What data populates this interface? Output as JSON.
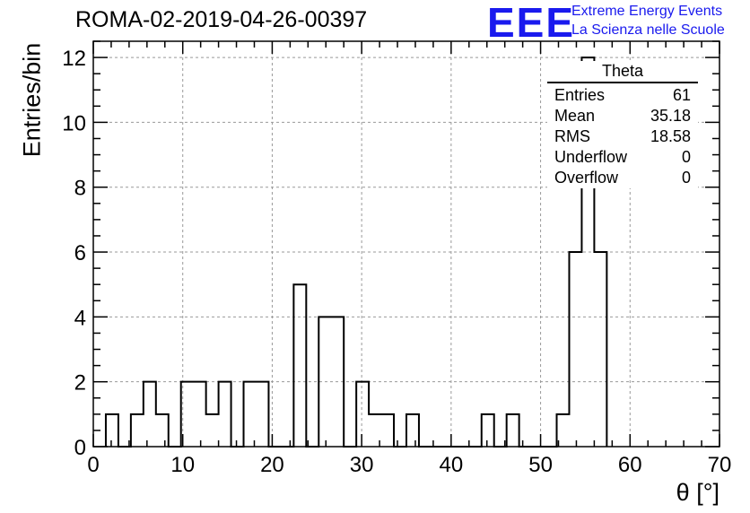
{
  "header": {
    "title": "ROMA-02-2019-04-26-00397",
    "logo_text": "EEE",
    "logo_line1": "Extreme Energy Events",
    "logo_line2": "La Scienza nelle Scuole",
    "logo_color": "#1a1aee"
  },
  "stats_box": {
    "name": "Theta",
    "rows": [
      {
        "label": "Entries",
        "value": "61"
      },
      {
        "label": "Mean",
        "value": "35.18"
      },
      {
        "label": "RMS",
        "value": "18.58"
      },
      {
        "label": "Underflow",
        "value": "0"
      },
      {
        "label": "Overflow",
        "value": "0"
      }
    ]
  },
  "chart_data": {
    "type": "bar",
    "histogram": true,
    "xlabel": "θ [°]",
    "ylabel": "Entries/bin",
    "xlim": [
      0,
      70
    ],
    "ylim": [
      0,
      12.5
    ],
    "xticks": [
      0,
      10,
      20,
      30,
      40,
      50,
      60,
      70
    ],
    "yticks": [
      0,
      2,
      4,
      6,
      8,
      10,
      12
    ],
    "grid": true,
    "bin_width": 1.4,
    "bin_edges_start": 1.4,
    "values": [
      1,
      0,
      1,
      2,
      1,
      0,
      2,
      2,
      1,
      2,
      0,
      2,
      2,
      0,
      0,
      5,
      0,
      4,
      4,
      0,
      2,
      1,
      1,
      0,
      1,
      0,
      0,
      0,
      0,
      0,
      1,
      0,
      1,
      0,
      0,
      0,
      1,
      6,
      12,
      6
    ],
    "line_color": "#000000"
  }
}
